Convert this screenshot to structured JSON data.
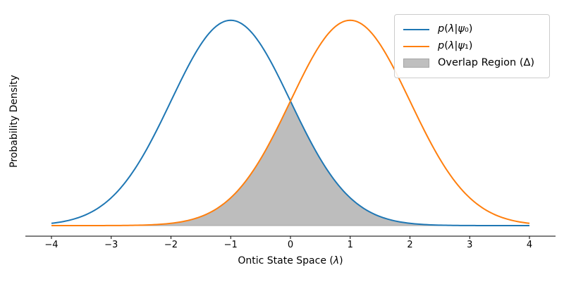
{
  "figure": {
    "background": "#ffffff",
    "title": ""
  },
  "chart_data": {
    "type": "line",
    "title": "",
    "xlabel": "Ontic State Space (λ)",
    "ylabel": "Probability Density",
    "xlim": [
      -4.4,
      4.4
    ],
    "ylim": [
      -0.02,
      0.42
    ],
    "x_ticks": [
      -4,
      -3,
      -2,
      -1,
      0,
      1,
      2,
      3,
      4
    ],
    "y_ticks": [],
    "grid": false,
    "spines": [
      "bottom"
    ],
    "series": [
      {
        "name": "p(λ|ψ₀)",
        "distribution": "normal",
        "mean": -1,
        "sigma": 1,
        "peak_density": 0.3989,
        "color": "#1f77b4",
        "line_width": 2
      },
      {
        "name": "p(λ|ψ₁)",
        "distribution": "normal",
        "mean": 1,
        "sigma": 1,
        "peak_density": 0.3989,
        "color": "#ff7f0e",
        "line_width": 2
      }
    ],
    "overlap_region": {
      "label": "Overlap Region (Δ)",
      "definition": "min of the two densities",
      "fill_color": "#bdbdbd",
      "edge_color": "#a6a6a6",
      "crossover_x": 0,
      "crossover_density": 0.242
    },
    "samples": {
      "x": [
        -4,
        -3.5,
        -3,
        -2.5,
        -2,
        -1.5,
        -1,
        -0.5,
        0,
        0.5,
        1,
        1.5,
        2,
        2.5,
        3,
        3.5,
        4
      ],
      "p_psi0": [
        0.0044,
        0.0175,
        0.054,
        0.1295,
        0.242,
        0.3521,
        0.3989,
        0.3521,
        0.242,
        0.1295,
        0.054,
        0.0175,
        0.0044,
        0.0009,
        0.0001,
        0,
        0
      ],
      "p_psi1": [
        0,
        0,
        0.0001,
        0.0009,
        0.0044,
        0.0175,
        0.054,
        0.1295,
        0.242,
        0.3521,
        0.3989,
        0.3521,
        0.242,
        0.1295,
        0.054,
        0.0175,
        0.0044
      ],
      "overlap_min": [
        0,
        0,
        0.0001,
        0.0009,
        0.0044,
        0.0175,
        0.054,
        0.1295,
        0.242,
        0.1295,
        0.054,
        0.0175,
        0.0044,
        0.0009,
        0.0001,
        0,
        0
      ]
    },
    "legend": {
      "position": "upper right",
      "border_color": "#cccccc",
      "entries": [
        {
          "label": "p(λ|ψ₀)",
          "swatch": "line",
          "color": "#1f77b4",
          "math": true
        },
        {
          "label": "p(λ|ψ₁)",
          "swatch": "line",
          "color": "#ff7f0e",
          "math": true
        },
        {
          "label": "Overlap Region (Δ)",
          "swatch": "patch",
          "fill": "#bfbfbf",
          "edge": "#a6a6a6",
          "math": false
        }
      ]
    }
  },
  "colors": {
    "curve_psi0": "#1f77b4",
    "curve_psi1": "#ff7f0e",
    "overlap_fill": "#bdbdbd",
    "axis": "#000000",
    "text": "#000000",
    "background": "#ffffff"
  }
}
